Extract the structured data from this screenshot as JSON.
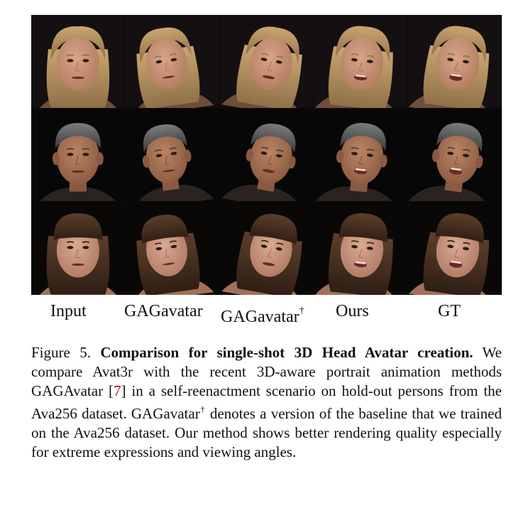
{
  "figure": {
    "columns": [
      {
        "label": "Input",
        "sup": ""
      },
      {
        "label": "GAGavatar",
        "sup": ""
      },
      {
        "label": "GAGavatar",
        "sup": "†"
      },
      {
        "label": "Ours",
        "sup": ""
      },
      {
        "label": "GT",
        "sup": ""
      }
    ],
    "rows": [
      {
        "subject": "blonde-woman",
        "skin": "#d7a487",
        "skin_shadow": "#b27b5f",
        "hair": "#c9a570",
        "hair_shadow": "#8f7048",
        "shirt": "#6d4e3a",
        "bg": "#140f10"
      },
      {
        "subject": "older-man",
        "skin": "#b98463",
        "skin_shadow": "#8a5a40",
        "hair": "#7c7c7c",
        "hair_shadow": "#3b3b3b",
        "shirt": "#2a2320",
        "bg": "#070707"
      },
      {
        "subject": "young-woman",
        "skin": "#dba891",
        "skin_shadow": "#b07a63",
        "hair": "#5c3f2c",
        "hair_shadow": "#2e1e14",
        "shirt": "#a1705a",
        "bg": "#0a0807"
      }
    ]
  },
  "caption": {
    "figure_label": "Figure 5.",
    "title": "Comparison for single-shot 3D Head Avatar creation.",
    "text_1": "We compare Avat3r with the recent 3D-aware portrait animation methods GAGAvatar [",
    "ref": "7",
    "text_2": "] in a self-reenactment scenario on hold-out persons from the Ava256 dataset. GAGavatar",
    "dagger": "†",
    "text_3": " denotes a version of the baseline that we trained on the Ava256 dataset. Our method shows better rendering quality especially for extreme expressions and viewing angles."
  }
}
